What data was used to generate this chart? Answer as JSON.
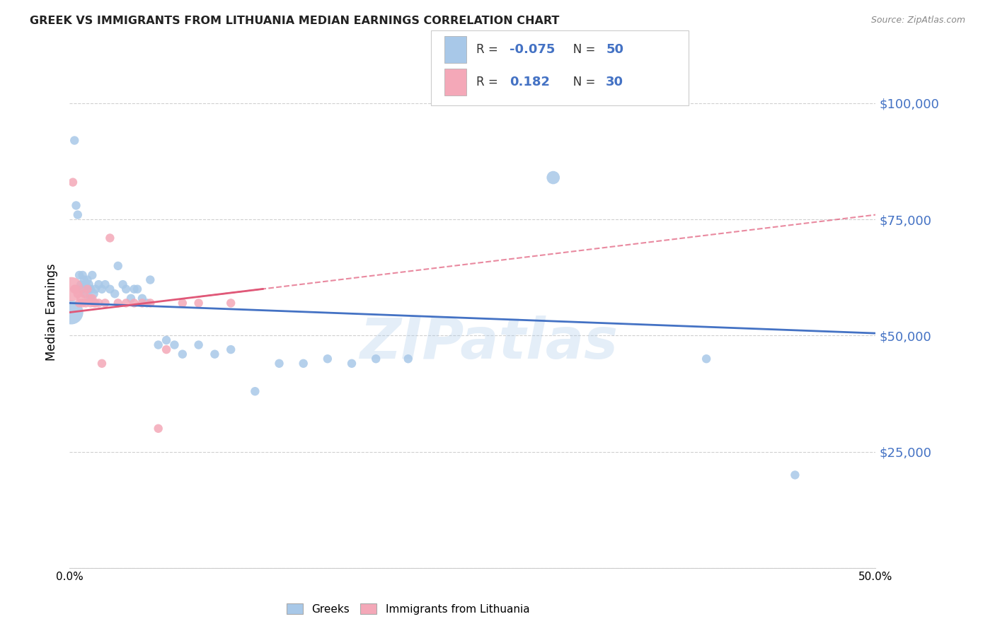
{
  "title": "GREEK VS IMMIGRANTS FROM LITHUANIA MEDIAN EARNINGS CORRELATION CHART",
  "source": "Source: ZipAtlas.com",
  "ylabel": "Median Earnings",
  "xlim": [
    0.0,
    0.5
  ],
  "ylim": [
    0,
    110000
  ],
  "yticks": [
    0,
    25000,
    50000,
    75000,
    100000
  ],
  "ytick_labels": [
    "",
    "$25,000",
    "$50,000",
    "$75,000",
    "$100,000"
  ],
  "xticks": [
    0.0,
    0.1,
    0.2,
    0.3,
    0.4,
    0.5
  ],
  "xtick_labels": [
    "0.0%",
    "",
    "",
    "",
    "",
    "50.0%"
  ],
  "watermark": "ZIPatlas",
  "greek_R": -0.075,
  "greek_N": 50,
  "lith_R": 0.182,
  "lith_N": 30,
  "greek_color": "#a8c8e8",
  "lith_color": "#f4a8b8",
  "trend_greek_color": "#4472c4",
  "trend_lith_color": "#e05878",
  "greek_scatter": [
    [
      0.001,
      55000
    ],
    [
      0.003,
      92000
    ],
    [
      0.004,
      78000
    ],
    [
      0.005,
      76000
    ],
    [
      0.006,
      63000
    ],
    [
      0.007,
      61000
    ],
    [
      0.008,
      63000
    ],
    [
      0.008,
      60000
    ],
    [
      0.009,
      62000
    ],
    [
      0.01,
      61000
    ],
    [
      0.01,
      59000
    ],
    [
      0.011,
      62000
    ],
    [
      0.012,
      61000
    ],
    [
      0.012,
      60000
    ],
    [
      0.013,
      60000
    ],
    [
      0.013,
      58000
    ],
    [
      0.014,
      63000
    ],
    [
      0.015,
      59000
    ],
    [
      0.016,
      60000
    ],
    [
      0.018,
      61000
    ],
    [
      0.02,
      60000
    ],
    [
      0.022,
      61000
    ],
    [
      0.025,
      60000
    ],
    [
      0.028,
      59000
    ],
    [
      0.03,
      65000
    ],
    [
      0.033,
      61000
    ],
    [
      0.035,
      60000
    ],
    [
      0.038,
      58000
    ],
    [
      0.04,
      60000
    ],
    [
      0.042,
      60000
    ],
    [
      0.045,
      58000
    ],
    [
      0.048,
      57000
    ],
    [
      0.05,
      62000
    ],
    [
      0.055,
      48000
    ],
    [
      0.06,
      49000
    ],
    [
      0.065,
      48000
    ],
    [
      0.07,
      46000
    ],
    [
      0.08,
      48000
    ],
    [
      0.09,
      46000
    ],
    [
      0.1,
      47000
    ],
    [
      0.115,
      38000
    ],
    [
      0.13,
      44000
    ],
    [
      0.145,
      44000
    ],
    [
      0.16,
      45000
    ],
    [
      0.175,
      44000
    ],
    [
      0.19,
      45000
    ],
    [
      0.21,
      45000
    ],
    [
      0.3,
      84000
    ],
    [
      0.395,
      45000
    ],
    [
      0.45,
      20000
    ]
  ],
  "greek_sizes": [
    600,
    80,
    80,
    80,
    80,
    80,
    80,
    80,
    80,
    80,
    80,
    80,
    80,
    80,
    80,
    80,
    80,
    80,
    80,
    80,
    80,
    80,
    80,
    80,
    80,
    80,
    80,
    80,
    80,
    80,
    80,
    80,
    80,
    80,
    80,
    80,
    80,
    80,
    80,
    80,
    80,
    80,
    80,
    80,
    80,
    80,
    80,
    180,
    80,
    80
  ],
  "lith_scatter": [
    [
      0.001,
      60000
    ],
    [
      0.002,
      83000
    ],
    [
      0.003,
      60000
    ],
    [
      0.004,
      60000
    ],
    [
      0.005,
      59000
    ],
    [
      0.006,
      57000
    ],
    [
      0.007,
      58000
    ],
    [
      0.008,
      57000
    ],
    [
      0.009,
      59000
    ],
    [
      0.01,
      57000
    ],
    [
      0.011,
      60000
    ],
    [
      0.012,
      58000
    ],
    [
      0.013,
      57000
    ],
    [
      0.014,
      58000
    ],
    [
      0.015,
      57000
    ],
    [
      0.016,
      57000
    ],
    [
      0.018,
      57000
    ],
    [
      0.02,
      44000
    ],
    [
      0.022,
      57000
    ],
    [
      0.025,
      71000
    ],
    [
      0.03,
      57000
    ],
    [
      0.035,
      57000
    ],
    [
      0.04,
      57000
    ],
    [
      0.045,
      57000
    ],
    [
      0.05,
      57000
    ],
    [
      0.055,
      30000
    ],
    [
      0.06,
      47000
    ],
    [
      0.07,
      57000
    ],
    [
      0.08,
      57000
    ],
    [
      0.1,
      57000
    ]
  ],
  "lith_sizes": [
    600,
    80,
    80,
    80,
    80,
    80,
    80,
    80,
    80,
    80,
    80,
    80,
    80,
    80,
    80,
    80,
    80,
    80,
    80,
    80,
    80,
    80,
    80,
    80,
    80,
    80,
    80,
    80,
    80,
    80
  ],
  "greek_trend": [
    0.0,
    0.5,
    57000,
    50500
  ],
  "lith_trend": [
    0.0,
    0.5,
    55000,
    76000
  ]
}
